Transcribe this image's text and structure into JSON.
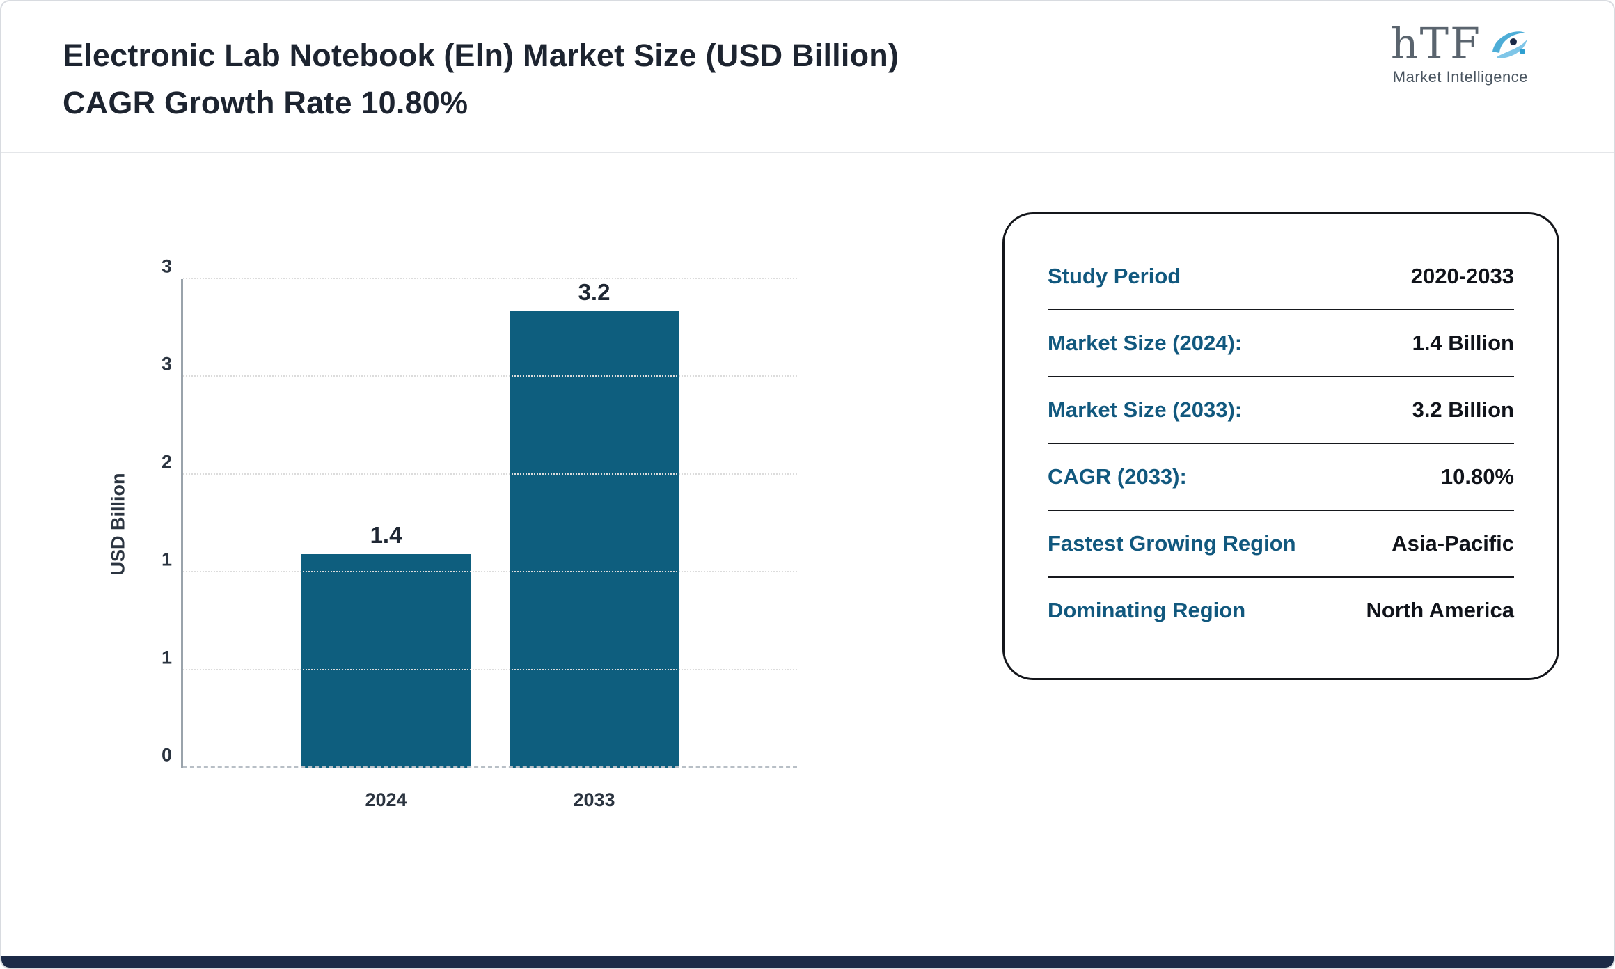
{
  "header": {
    "title": "Electronic Lab Notebook (Eln) Market Size (USD Billion) CAGR Growth Rate 10.80%",
    "logo": {
      "text": "hTF",
      "subtext": "Market Intelligence"
    }
  },
  "chart_data": {
    "type": "bar",
    "title": "Electronic Lab Notebook (Eln) Market Size (USD Billion)",
    "categories": [
      "2024",
      "2033"
    ],
    "values": [
      1.4,
      3.2
    ],
    "bar_labels": [
      "1.4",
      "3.2"
    ],
    "xlabel": "",
    "ylabel": "USD Billion",
    "ylim": [
      0,
      3.2
    ],
    "ytick_labels_bottom_to_top": [
      "0",
      "1",
      "1",
      "2",
      "3",
      "3"
    ],
    "grid": true,
    "legend": "none",
    "bar_color": "#0e5e7e"
  },
  "info_panel": {
    "rows": [
      {
        "label": "Study Period",
        "value": "2020-2033"
      },
      {
        "label": "Market Size (2024):",
        "value": "1.4 Billion"
      },
      {
        "label": "Market Size (2033):",
        "value": "3.2 Billion"
      },
      {
        "label": "CAGR (2033):",
        "value": "10.80%"
      },
      {
        "label": "Fastest Growing Region",
        "value": "Asia-Pacific"
      },
      {
        "label": "Dominating Region",
        "value": "North America"
      }
    ],
    "label_color": "#11587e",
    "value_color": "#10131a"
  },
  "colors": {
    "footer_strip": "#1c2a47",
    "accent_blue": "#2e9fd0",
    "title_text": "#1d2430"
  }
}
